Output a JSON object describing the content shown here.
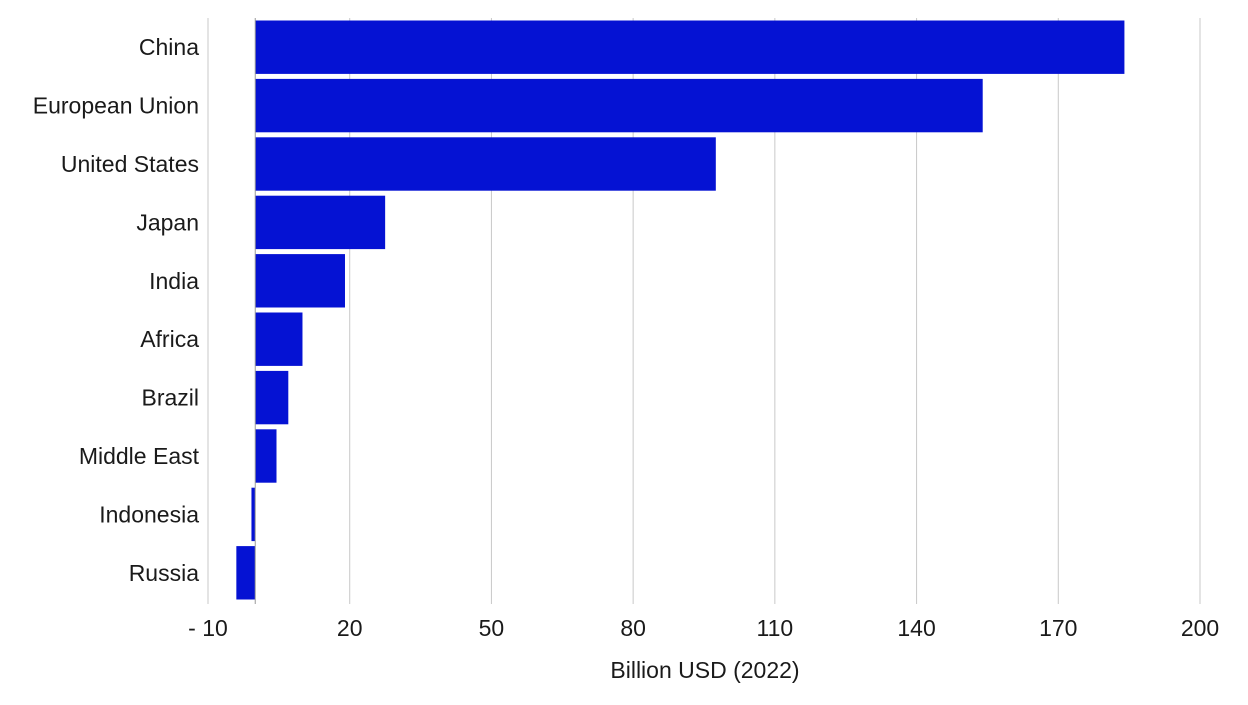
{
  "chart_data": {
    "type": "bar",
    "orientation": "horizontal",
    "categories": [
      "China",
      "European Union",
      "United States",
      "Japan",
      "India",
      "Africa",
      "Brazil",
      "Middle East",
      "Indonesia",
      "Russia"
    ],
    "values": [
      184,
      154,
      97.5,
      27.5,
      19,
      10,
      7,
      4.5,
      -0.8,
      -4
    ],
    "bar_color": "#0512d3",
    "xlabel": "Billion USD (2022)",
    "xlim": [
      -10,
      200
    ],
    "xticks": [
      -10,
      20,
      50,
      80,
      110,
      140,
      170,
      200
    ],
    "xtick_labels": [
      "- 10",
      "20",
      "50",
      "80",
      "110",
      "140",
      "170",
      "200"
    ],
    "grid": "vertical",
    "legend": "none"
  }
}
